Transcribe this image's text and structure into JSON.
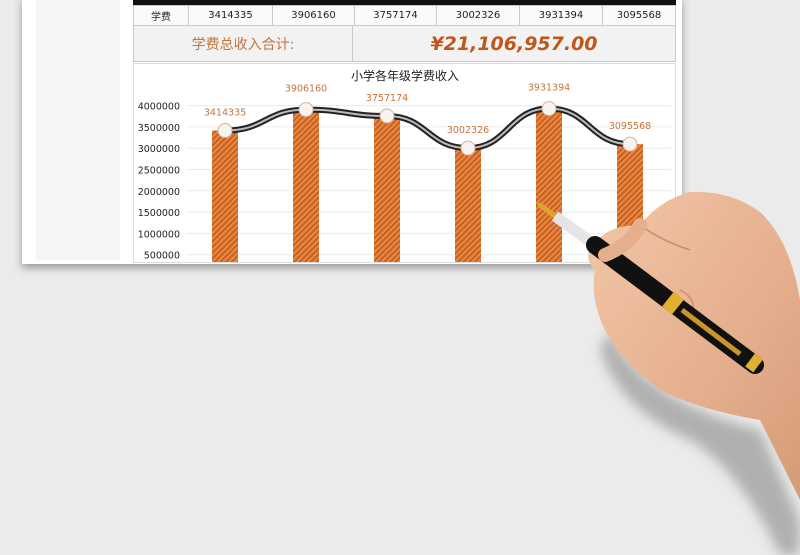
{
  "table": {
    "row_label": "学费",
    "values": [
      "3414335",
      "3906160",
      "3757174",
      "3002326",
      "3931394",
      "3095568"
    ],
    "total_label": "学费总收入合计:",
    "total_value": "¥21,106,957.00"
  },
  "chart_data": {
    "type": "bar",
    "title": "小学各年级学费收入",
    "values": [
      3414335,
      3906160,
      3757174,
      3002326,
      3931394,
      3095568
    ],
    "data_labels": [
      "3414335",
      "3906160",
      "3757174",
      "3002326",
      "3931394",
      "3095568"
    ],
    "y_ticks": [
      "4000000",
      "3500000",
      "3000000",
      "2500000",
      "2000000",
      "1500000",
      "1000000",
      "500000"
    ],
    "ylim": [
      0,
      4000000
    ],
    "grid": true,
    "overlay_line": "smoothed line with circle markers over the bars",
    "colors": {
      "bar": "#e07a2e",
      "line": "#333333",
      "label": "#c8743a"
    }
  },
  "decoration": {
    "hand_with_pen": "hand-holding-fountain-pen"
  }
}
